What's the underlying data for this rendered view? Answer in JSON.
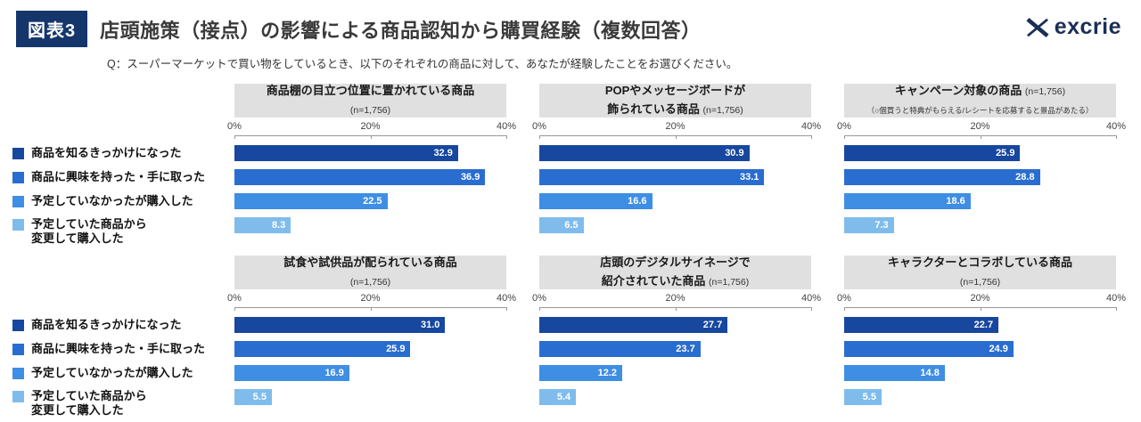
{
  "header": {
    "badge": "図表3",
    "title": "店頭施策（接点）の影響による商品認知から購買経験（複数回答）",
    "logo": "excrie",
    "subtitle": "Q：スーパーマーケットで買い物をしているとき、以下のそれぞれの商品に対して、あなたが経験したことをお選びください。"
  },
  "chart_data": {
    "type": "bar",
    "orientation": "horizontal",
    "xlim": [
      0,
      40
    ],
    "ticks": [
      "0%",
      "20%",
      "40%"
    ],
    "grid": false,
    "legend_position": "left",
    "categories": [
      "商品を知るきっかけになった",
      "商品に興味を持った・手に取った",
      "予定していなかったが購入した",
      "予定していた商品から\n変更して購入した"
    ],
    "category_colors": [
      "#17479e",
      "#2a6dd0",
      "#3e8ee4",
      "#7fbcec"
    ],
    "charts": [
      {
        "title": "商品棚の目立つ位置に置かれている商品",
        "n_label": "(n=1,756)",
        "title_lines": [
          [
            {
              "t": "商品棚の目立つ位置に置かれている商品",
              "s": "main"
            }
          ],
          [
            {
              "t": "(n=1,756)",
              "s": "n"
            }
          ]
        ],
        "values": [
          32.9,
          36.9,
          22.5,
          8.3
        ]
      },
      {
        "title": "POPやメッセージボードが飾られている商品",
        "n_label": "(n=1,756)",
        "title_lines": [
          [
            {
              "t": "POPやメッセージボードが",
              "s": "main"
            }
          ],
          [
            {
              "t": "飾られている商品 ",
              "s": "main"
            },
            {
              "t": "(n=1,756)",
              "s": "n"
            }
          ]
        ],
        "values": [
          30.9,
          33.1,
          16.6,
          6.5
        ]
      },
      {
        "title": "キャンペーン対象の商品",
        "n_label": "(n=1,756)",
        "title_lines": [
          [
            {
              "t": "キャンペーン対象の商品 ",
              "s": "main"
            },
            {
              "t": "(n=1,756)",
              "s": "n"
            }
          ],
          [
            {
              "t": "（○個買うと特典がもらえる/レシートを応募すると景品があたる）",
              "s": "note"
            }
          ]
        ],
        "values": [
          25.9,
          28.8,
          18.6,
          7.3
        ]
      },
      {
        "title": "試食や試供品が配られている商品",
        "n_label": "(n=1,756)",
        "title_lines": [
          [
            {
              "t": "試食や試供品が配られている商品",
              "s": "main"
            }
          ],
          [
            {
              "t": "(n=1,756)",
              "s": "n"
            }
          ]
        ],
        "values": [
          31.0,
          25.9,
          16.9,
          5.5
        ]
      },
      {
        "title": "店頭のデジタルサイネージで紹介されていた商品",
        "n_label": "(n=1,756)",
        "title_lines": [
          [
            {
              "t": "店頭のデジタルサイネージで",
              "s": "main"
            }
          ],
          [
            {
              "t": "紹介されていた商品 ",
              "s": "main"
            },
            {
              "t": "(n=1,756)",
              "s": "n"
            }
          ]
        ],
        "values": [
          27.7,
          23.7,
          12.2,
          5.4
        ]
      },
      {
        "title": "キャラクターとコラボしている商品",
        "n_label": "(n=1,756)",
        "title_lines": [
          [
            {
              "t": "キャラクターとコラボしている商品",
              "s": "main"
            }
          ],
          [
            {
              "t": "(n=1,756)",
              "s": "n"
            }
          ]
        ],
        "values": [
          22.7,
          24.9,
          14.8,
          5.5
        ]
      }
    ]
  }
}
